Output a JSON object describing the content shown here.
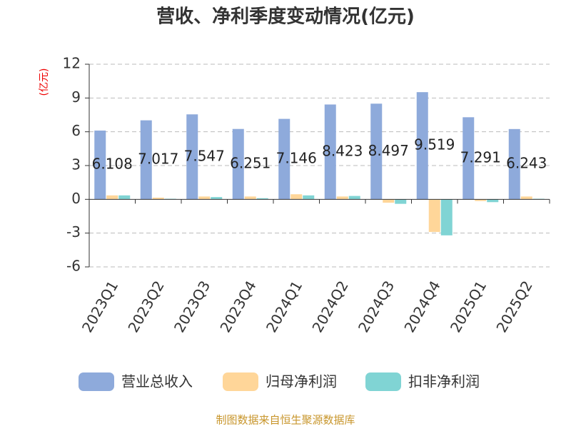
{
  "chart_data": {
    "type": "bar",
    "title": "营收、净利季度变动情况(亿元)",
    "y_label": "(亿元)",
    "source": "制图数据来自恒生聚源数据库",
    "categories": [
      "2023Q1",
      "2023Q2",
      "2023Q3",
      "2023Q4",
      "2024Q1",
      "2024Q2",
      "2024Q3",
      "2024Q4",
      "2025Q1",
      "2025Q2"
    ],
    "series": [
      {
        "name": "营业总收入",
        "color": "#8eaadb",
        "values": [
          6.108,
          7.017,
          7.547,
          6.251,
          7.146,
          8.423,
          8.497,
          9.519,
          7.291,
          6.243
        ]
      },
      {
        "name": "归母净利润",
        "color": "#ffd699",
        "values": [
          0.35,
          0.15,
          0.25,
          0.25,
          0.45,
          0.25,
          -0.3,
          -2.9,
          -0.15,
          0.25
        ]
      },
      {
        "name": "扣非净利润",
        "color": "#80d4d4",
        "values": [
          0.35,
          0.05,
          0.2,
          0.1,
          0.35,
          0.3,
          -0.4,
          -3.2,
          -0.25,
          0.05
        ]
      }
    ],
    "data_labels_series": 0,
    "ylim": [
      -6,
      12
    ],
    "yticks": [
      -6,
      -3,
      0,
      3,
      6,
      9,
      12
    ],
    "grid": true
  }
}
